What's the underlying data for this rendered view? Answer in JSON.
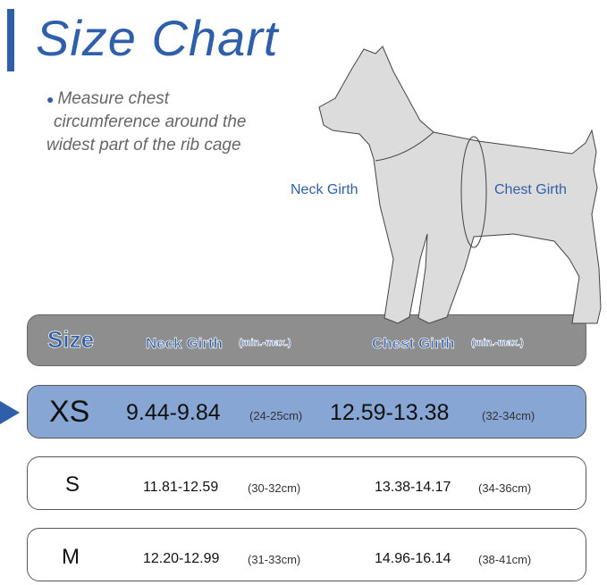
{
  "title": "Size Chart",
  "instruction": [
    "Measure chest",
    "circumference around the",
    "widest part of the rib cage"
  ],
  "diagram_labels": {
    "neck": "Neck Girth",
    "chest": "Chest Girth"
  },
  "header": {
    "size": "Size",
    "neck": "Neck Girth",
    "neck_unit": "(min.-max.)",
    "chest": "Chest Girth",
    "chest_unit": "(min.-max.)"
  },
  "rows": [
    {
      "size": "XS",
      "neck_in": "9.44-9.84",
      "neck_cm": "(24-25cm)",
      "chest_in": "12.59-13.38",
      "chest_cm": "(32-34cm)",
      "highlighted": true
    },
    {
      "size": "S",
      "neck_in": "11.81-12.59",
      "neck_cm": "(30-32cm)",
      "chest_in": "13.38-14.17",
      "chest_cm": "(34-36cm)"
    },
    {
      "size": "M",
      "neck_in": "12.20-12.99",
      "neck_cm": "(31-33cm)",
      "chest_in": "14.96-16.14",
      "chest_cm": "(38-41cm)"
    }
  ],
  "colors": {
    "accent": "#2f5fa8",
    "header_bg": "#8e8e8e",
    "highlight_bg": "#87a6d4",
    "dog": "#dcdcdc"
  },
  "icons": {
    "selected_row": "triangle-right-icon",
    "bullet": "bullet-dot-icon"
  }
}
